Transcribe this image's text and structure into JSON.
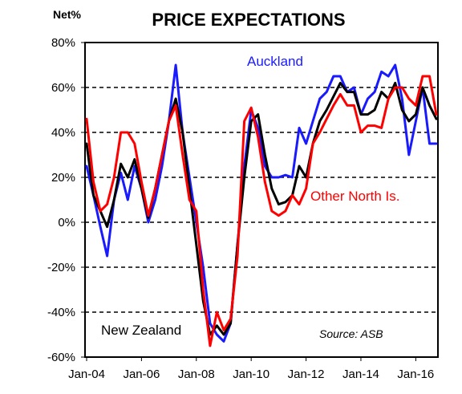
{
  "chart_data": {
    "type": "line",
    "title": "PRICE EXPECTATIONS",
    "unit_label": "Net%",
    "source": "Source:  ASB",
    "xlabel": "",
    "ylabel": "",
    "ylim": [
      -60,
      80
    ],
    "y_ticks": [
      {
        "value": 80,
        "label": "80%"
      },
      {
        "value": 60,
        "label": "60%"
      },
      {
        "value": 40,
        "label": "40%"
      },
      {
        "value": 20,
        "label": "20%"
      },
      {
        "value": 0,
        "label": "0%"
      },
      {
        "value": -20,
        "label": "-20%"
      },
      {
        "value": -40,
        "label": "-40%"
      },
      {
        "value": -60,
        "label": "-60%"
      }
    ],
    "x_ticks": [
      "Jan-04",
      "Jan-06",
      "Jan-08",
      "Jan-10",
      "Jan-12",
      "Jan-14",
      "Jan-16"
    ],
    "grid": "dashed horizontal",
    "quarters": [
      "Jan-04",
      "Apr-04",
      "Jul-04",
      "Oct-04",
      "Jan-05",
      "Apr-05",
      "Jul-05",
      "Oct-05",
      "Jan-06",
      "Apr-06",
      "Jul-06",
      "Oct-06",
      "Jan-07",
      "Apr-07",
      "Jul-07",
      "Oct-07",
      "Jan-08",
      "Apr-08",
      "Jul-08",
      "Oct-08",
      "Jan-09",
      "Apr-09",
      "Jul-09",
      "Oct-09",
      "Jan-10",
      "Apr-10",
      "Jul-10",
      "Oct-10",
      "Jan-11",
      "Apr-11",
      "Jul-11",
      "Oct-11",
      "Jan-12",
      "Apr-12",
      "Jul-12",
      "Oct-12",
      "Jan-13",
      "Apr-13",
      "Jul-13",
      "Oct-13",
      "Jan-14",
      "Apr-14",
      "Jul-14",
      "Oct-14",
      "Jan-15",
      "Apr-15",
      "Jul-15",
      "Oct-15",
      "Jan-16",
      "Apr-16",
      "Jul-16",
      "Oct-16"
    ],
    "series": [
      {
        "name": "Auckland",
        "color": "#1a1aff",
        "values": [
          25,
          12,
          -2,
          -15,
          10,
          22,
          10,
          25,
          15,
          0,
          10,
          25,
          45,
          70,
          40,
          20,
          0,
          -20,
          -45,
          -50,
          -53,
          -45,
          -10,
          25,
          50,
          42,
          25,
          20,
          20,
          21,
          20,
          42,
          35,
          45,
          55,
          58,
          65,
          65,
          58,
          60,
          48,
          55,
          58,
          67,
          65,
          70,
          55,
          30,
          45,
          60,
          35,
          35
        ]
      },
      {
        "name": "New Zealand",
        "color": "#000000",
        "values": [
          35,
          12,
          5,
          -2,
          10,
          26,
          20,
          28,
          15,
          2,
          15,
          30,
          45,
          55,
          40,
          15,
          -10,
          -35,
          -50,
          -46,
          -50,
          -45,
          -10,
          20,
          45,
          48,
          30,
          15,
          8,
          9,
          12,
          25,
          20,
          35,
          45,
          50,
          56,
          62,
          58,
          58,
          48,
          48,
          50,
          58,
          55,
          62,
          50,
          45,
          48,
          60,
          52,
          46
        ]
      },
      {
        "name": "Other North Is.",
        "color": "#ff0000",
        "values": [
          46,
          18,
          5,
          8,
          20,
          40,
          40,
          35,
          18,
          3,
          15,
          30,
          45,
          52,
          30,
          10,
          5,
          -30,
          -55,
          -40,
          -48,
          -43,
          -15,
          45,
          51,
          38,
          18,
          5,
          3,
          5,
          12,
          8,
          15,
          35,
          40,
          46,
          52,
          57,
          52,
          52,
          40,
          43,
          43,
          42,
          55,
          60,
          60,
          55,
          52,
          65,
          65,
          48
        ]
      }
    ],
    "annotations": {
      "auckland": "Auckland",
      "other_north": "Other North Is.",
      "new_zealand": "New Zealand"
    }
  }
}
